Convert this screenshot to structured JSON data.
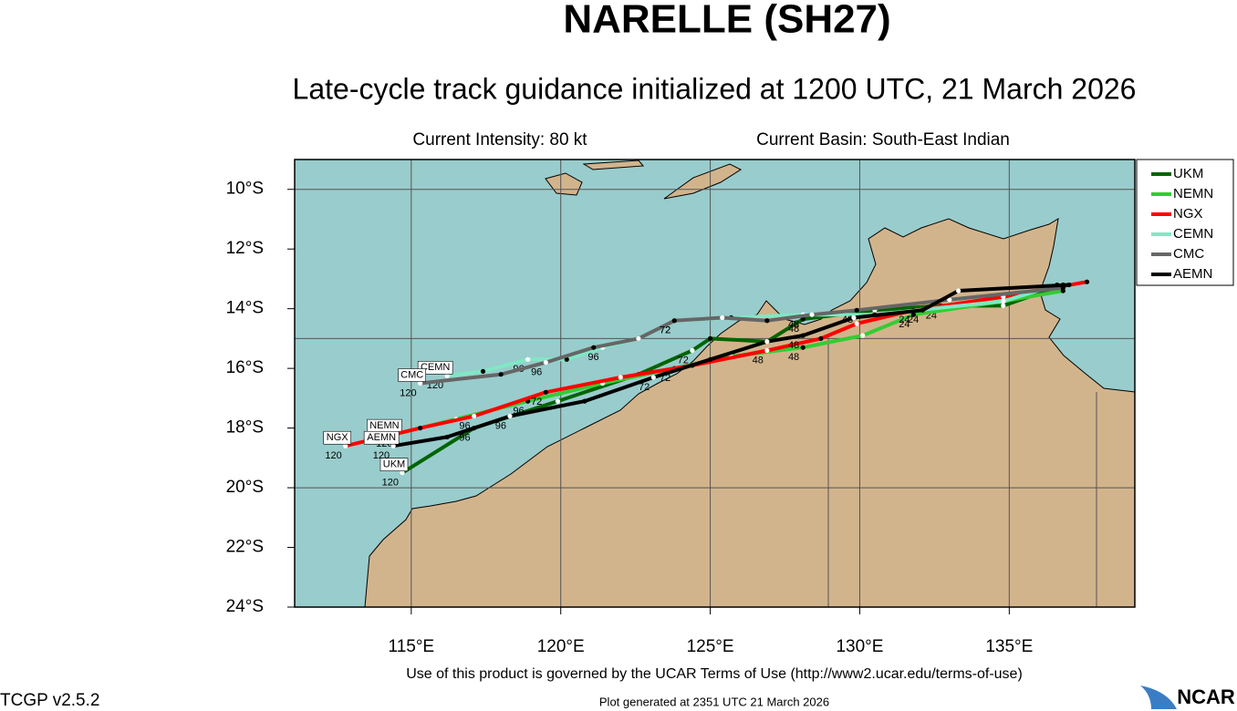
{
  "chart_data": {
    "type": "line",
    "title": "NARELLE (SH27)",
    "subtitle": "Late-cycle track guidance initialized at 1200 UTC, 21 March 2026",
    "intensity": "Current Intensity: 80 kt",
    "basin": "Current Basin: South-East Indian",
    "terms": "Use of this product is governed by the UCAR Terms of Use (http://www2.ucar.edu/terms-of-use)",
    "version": "TCGP v2.5.2",
    "generated": "Plot generated at 2351 UTC   21 March 2026",
    "logo": "NCAR",
    "xlim": [
      111.1,
      139.2
    ],
    "ylim": [
      -24,
      -9.0
    ],
    "xticks": [
      {
        "value": 115,
        "label": "115°E"
      },
      {
        "value": 120,
        "label": "120°E"
      },
      {
        "value": 125,
        "label": "125°E"
      },
      {
        "value": 130,
        "label": "130°E"
      },
      {
        "value": 135,
        "label": "135°E"
      }
    ],
    "yticks": [
      {
        "value": -10,
        "label": "10°S"
      },
      {
        "value": -12,
        "label": "12°S"
      },
      {
        "value": -14,
        "label": "14°S"
      },
      {
        "value": -16,
        "label": "16°S"
      },
      {
        "value": -18,
        "label": "18°S"
      },
      {
        "value": -20,
        "label": "20°S"
      },
      {
        "value": -22,
        "label": "22°S"
      },
      {
        "value": -24,
        "label": "24°S"
      }
    ],
    "ygrid": [
      -10,
      -15,
      -20
    ],
    "legend": "right",
    "series": [
      {
        "name": "UKM",
        "color": "#006400",
        "x": [
          136.8,
          134.8,
          132.7,
          130.5,
          128.1,
          126.9,
          125.0,
          124.4,
          122.6,
          119.9,
          117.1,
          114.7
        ],
        "y": [
          -13.2,
          -13.9,
          -13.9,
          -14.05,
          -14.35,
          -15.1,
          -15.0,
          -15.4,
          -16.2,
          -17.1,
          -18.0,
          -19.5
        ],
        "point_labels": [
          null,
          null,
          "24",
          null,
          "48",
          null,
          null,
          "72",
          null,
          null,
          "96",
          "120"
        ]
      },
      {
        "name": "NEMN",
        "color": "#33cc33",
        "x": [
          136.8,
          134.8,
          131.8,
          130.1,
          128.1,
          125.7,
          123.8,
          121.4,
          118.9,
          116.5,
          114.5
        ],
        "y": [
          -13.4,
          -13.75,
          -14.2,
          -14.9,
          -15.3,
          -15.6,
          -16.0,
          -16.5,
          -17.1,
          -17.7,
          -18.2
        ],
        "point_labels": [
          null,
          null,
          "24",
          null,
          "48",
          null,
          "72",
          null,
          "96",
          null,
          "120"
        ]
      },
      {
        "name": "NGX",
        "color": "#ff0000",
        "x": [
          137.6,
          134.8,
          131.8,
          129.9,
          128.7,
          126.9,
          124.4,
          122.0,
          119.5,
          117.1,
          115.3,
          112.8
        ],
        "y": [
          -13.1,
          -13.6,
          -14.05,
          -14.5,
          -15.0,
          -15.4,
          -15.9,
          -16.3,
          -16.8,
          -17.6,
          -18.0,
          -18.6
        ],
        "point_labels": [
          null,
          null,
          "24",
          null,
          null,
          "48",
          null,
          null,
          "72",
          "96",
          null,
          "120"
        ]
      },
      {
        "name": "CEMN",
        "color": "#7fe8c4",
        "x": [
          136.6,
          134.8,
          130.5,
          128.1,
          125.7,
          123.8,
          122.6,
          121.4,
          120.2,
          118.9,
          117.4,
          116.2
        ],
        "y": [
          -13.2,
          -13.75,
          -14.2,
          -14.2,
          -14.3,
          -14.4,
          -15.0,
          -15.3,
          -15.7,
          -15.7,
          -16.1,
          -16.25
        ],
        "point_labels": [
          null,
          null,
          null,
          "48",
          null,
          "72",
          null,
          "96",
          null,
          "96",
          null,
          "120"
        ]
      },
      {
        "name": "CMC",
        "color": "#666666",
        "x": [
          136.8,
          133.0,
          129.9,
          128.4,
          126.9,
          125.4,
          123.8,
          122.6,
          121.1,
          119.5,
          118.0,
          115.3
        ],
        "y": [
          -13.3,
          -13.7,
          -14.05,
          -14.2,
          -14.4,
          -14.3,
          -14.4,
          -15.0,
          -15.3,
          -15.8,
          -16.2,
          -16.5
        ],
        "point_labels": [
          null,
          null,
          "48",
          null,
          null,
          null,
          "72",
          null,
          null,
          "96",
          null,
          "120"
        ]
      },
      {
        "name": "AEMN",
        "color": "#000000",
        "x": [
          137.0,
          133.3,
          132.1,
          129.8,
          128.1,
          126.9,
          125.0,
          123.1,
          120.8,
          118.3,
          116.2,
          114.4
        ],
        "y": [
          -13.2,
          -13.4,
          -14.05,
          -14.3,
          -14.9,
          -15.1,
          -15.7,
          -16.3,
          -17.1,
          -17.6,
          -18.3,
          -18.6
        ],
        "point_labels": [
          null,
          null,
          "24",
          null,
          "48",
          null,
          null,
          "72",
          null,
          "96",
          null,
          "120"
        ]
      }
    ]
  }
}
